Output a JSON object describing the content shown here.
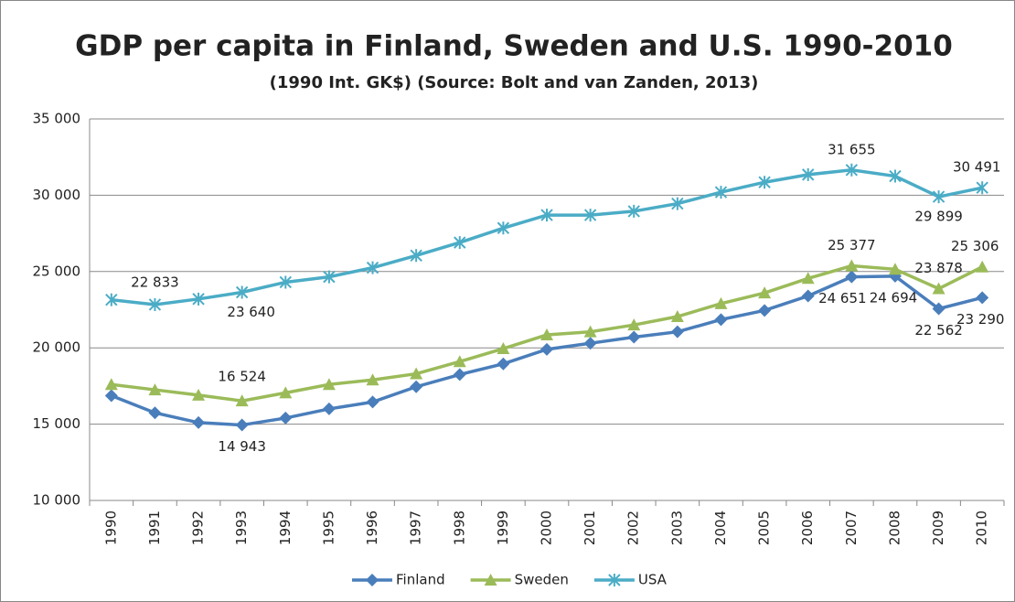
{
  "chart_data": {
    "type": "line",
    "title": "GDP per capita in Finland, Sweden and U.S. 1990-2010",
    "subtitle": "(1990 Int. GK$) (Source: Bolt and van Zanden, 2013)",
    "categories": [
      "1990",
      "1991",
      "1992",
      "1993",
      "1994",
      "1995",
      "1996",
      "1997",
      "1998",
      "1999",
      "2000",
      "2001",
      "2002",
      "2003",
      "2004",
      "2005",
      "2006",
      "2007",
      "2008",
      "2009",
      "2010"
    ],
    "ylim": [
      10000,
      35000
    ],
    "yticks": [
      {
        "value": 10000,
        "label": "10 000"
      },
      {
        "value": 15000,
        "label": "15 000"
      },
      {
        "value": 20000,
        "label": "20 000"
      },
      {
        "value": 25000,
        "label": "25 000"
      },
      {
        "value": 30000,
        "label": "30 000"
      },
      {
        "value": 35000,
        "label": "35 000"
      }
    ],
    "grid": true,
    "legend": "bottom",
    "series": [
      {
        "name": "Finland",
        "color": "#4a7ebb",
        "marker": "diamond",
        "values": [
          16868,
          15740,
          15100,
          14943,
          15400,
          16000,
          16450,
          17450,
          18250,
          18950,
          19900,
          20300,
          20700,
          21050,
          21850,
          22450,
          23400,
          24651,
          24694,
          22562,
          23290
        ],
        "value_labels": [
          null,
          null,
          null,
          "14 943",
          null,
          null,
          null,
          null,
          null,
          null,
          null,
          null,
          null,
          null,
          null,
          null,
          null,
          "24 651",
          "24 694",
          "22 562",
          "23 290"
        ]
      },
      {
        "name": "Sweden",
        "color": "#9bbb59",
        "marker": "triangle",
        "values": [
          17600,
          17250,
          16900,
          16524,
          17050,
          17600,
          17900,
          18300,
          19100,
          19950,
          20850,
          21050,
          21500,
          22050,
          22900,
          23600,
          24550,
          25377,
          25150,
          23878,
          25306
        ],
        "value_labels": [
          null,
          null,
          null,
          "16 524",
          null,
          null,
          null,
          null,
          null,
          null,
          null,
          null,
          null,
          null,
          null,
          null,
          null,
          "25 377",
          null,
          "23 878",
          "25 306"
        ]
      },
      {
        "name": "USA",
        "color": "#4bacc6",
        "marker": "star",
        "values": [
          23150,
          22833,
          23200,
          23640,
          24300,
          24650,
          25250,
          26050,
          26900,
          27850,
          28700,
          28700,
          28950,
          29450,
          30200,
          30850,
          31350,
          31655,
          31250,
          29899,
          30491
        ],
        "value_labels": [
          null,
          "22 833",
          null,
          "23 640",
          null,
          null,
          null,
          null,
          null,
          null,
          null,
          null,
          null,
          null,
          null,
          null,
          null,
          "31 655",
          null,
          "29 899",
          "30 491"
        ]
      }
    ]
  }
}
